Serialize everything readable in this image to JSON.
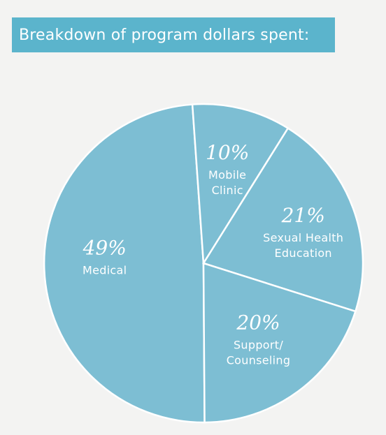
{
  "title": "Breakdown of program dollars spent:",
  "colors": {
    "title_bg": "#5bb4cc",
    "slice_fill": "#7dbed3",
    "slice_stroke": "#ffffff",
    "background": "#f3f3f2",
    "text": "#ffffff"
  },
  "chart_data": {
    "type": "pie",
    "title": "Breakdown of program dollars spent:",
    "start": "12 o'clock",
    "direction": "clockwise",
    "slices": [
      {
        "value": 49,
        "percent_label": "49%",
        "label_lines": [
          "Medical"
        ]
      },
      {
        "value": 10,
        "percent_label": "10%",
        "label_lines": [
          "Mobile",
          "Clinic"
        ]
      },
      {
        "value": 21,
        "percent_label": "21%",
        "label_lines": [
          "Sexual Health",
          "Education"
        ]
      },
      {
        "value": 20,
        "percent_label": "20%",
        "label_lines": [
          "Support/",
          "Counseling"
        ]
      }
    ]
  }
}
